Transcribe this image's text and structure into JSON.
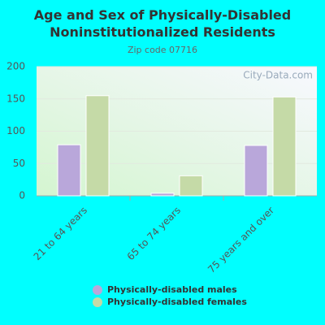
{
  "chart_data": {
    "type": "bar",
    "title": "Age and Sex of Physically-Disabled Noninstitutionalized Residents",
    "subtitle": "Zip code 07716",
    "watermark": "City-Data.com",
    "categories": [
      "21 to 64 years",
      "65 to 74 years",
      "75 years and over"
    ],
    "series": [
      {
        "name": "Physically-disabled males",
        "color": "#b9a7da",
        "values": [
          79,
          4,
          78
        ]
      },
      {
        "name": "Physically-disabled females",
        "color": "#c5daa7",
        "values": [
          155,
          31,
          153
        ]
      }
    ],
    "ylim": [
      0,
      200
    ],
    "yticks": [
      0,
      50,
      100,
      150,
      200
    ],
    "grid": true
  }
}
